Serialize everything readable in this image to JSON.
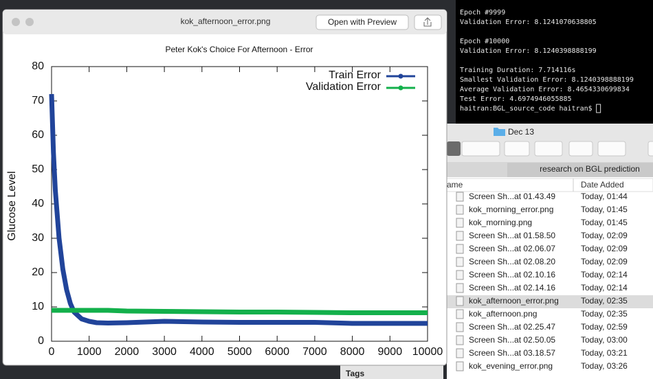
{
  "preview_window": {
    "title": "kok_afternoon_error.png",
    "open_button": "Open with Preview"
  },
  "chart_data": {
    "type": "line",
    "title": "Peter Kok's Choice For Afternoon - Error",
    "ylabel": "Glucose Level",
    "x": [
      0,
      50,
      100,
      200,
      300,
      400,
      500,
      600,
      800,
      1000,
      1200,
      1500,
      2000,
      3000,
      4000,
      5000,
      6000,
      7000,
      8000,
      9000,
      10000
    ],
    "series": [
      {
        "name": "Train Error",
        "color": "#21449a",
        "values": [
          72,
          55,
          44,
          30,
          21,
          15,
          11,
          8.5,
          6.5,
          5.8,
          5.4,
          5.3,
          5.4,
          5.8,
          5.6,
          5.5,
          5.5,
          5.5,
          5.2,
          5.2,
          5.2
        ]
      },
      {
        "name": "Validation Error",
        "color": "#13b04b",
        "values": [
          9,
          9,
          9,
          9,
          9,
          9,
          9,
          9,
          9,
          9,
          9,
          9,
          8.8,
          8.7,
          8.6,
          8.5,
          8.5,
          8.4,
          8.3,
          8.3,
          8.3
        ]
      }
    ],
    "xlim": [
      0,
      10000
    ],
    "ylim": [
      0,
      80
    ],
    "xticks": [
      0,
      1000,
      2000,
      3000,
      4000,
      5000,
      6000,
      7000,
      8000,
      9000,
      10000
    ],
    "yticks": [
      0,
      10,
      20,
      30,
      40,
      50,
      60,
      70,
      80
    ],
    "legend": "upper right"
  },
  "terminal": {
    "blocks": [
      [
        "Epoch #9999",
        "Validation Error: 8.1241070638805"
      ],
      [
        "Epoch #10000",
        "Validation Error: 8.1240398888199"
      ],
      [
        "Training Duration: 7.714116s",
        "Smallest Validation Error: 8.1240398888199",
        "Average Validation Error: 8.4654330699834",
        "Test Error: 4.6974946055885"
      ]
    ],
    "prompt": "haitran:BGL_source_code haitran$"
  },
  "finder": {
    "folder": "Dec 13",
    "path": "research on BGL prediction",
    "columns": [
      "ame",
      "Date Added"
    ],
    "rows": [
      [
        "Screen Sh...at 01.43.49",
        "Today, 01:44"
      ],
      [
        "kok_morning_error.png",
        "Today, 01:45"
      ],
      [
        "kok_morning.png",
        "Today, 01:45"
      ],
      [
        "Screen Sh...at 01.58.50",
        "Today, 02:09"
      ],
      [
        "Screen Sh...at 02.06.07",
        "Today, 02:09"
      ],
      [
        "Screen Sh...at 02.08.20",
        "Today, 02:09"
      ],
      [
        "Screen Sh...at 02.10.16",
        "Today, 02:14"
      ],
      [
        "Screen Sh...at 02.14.16",
        "Today, 02:14"
      ],
      [
        "kok_afternoon_error.png",
        "Today, 02:35"
      ],
      [
        "kok_afternoon.png",
        "Today, 02:35"
      ],
      [
        "Screen Sh...at 02.25.47",
        "Today, 02:59"
      ],
      [
        "Screen Sh...at 02.50.05",
        "Today, 03:00"
      ],
      [
        "Screen Sh...at 03.18.57",
        "Today, 03:21"
      ],
      [
        "kok_evening_error.png",
        "Today, 03:26"
      ]
    ]
  },
  "background_window": {
    "label": "Tags"
  }
}
